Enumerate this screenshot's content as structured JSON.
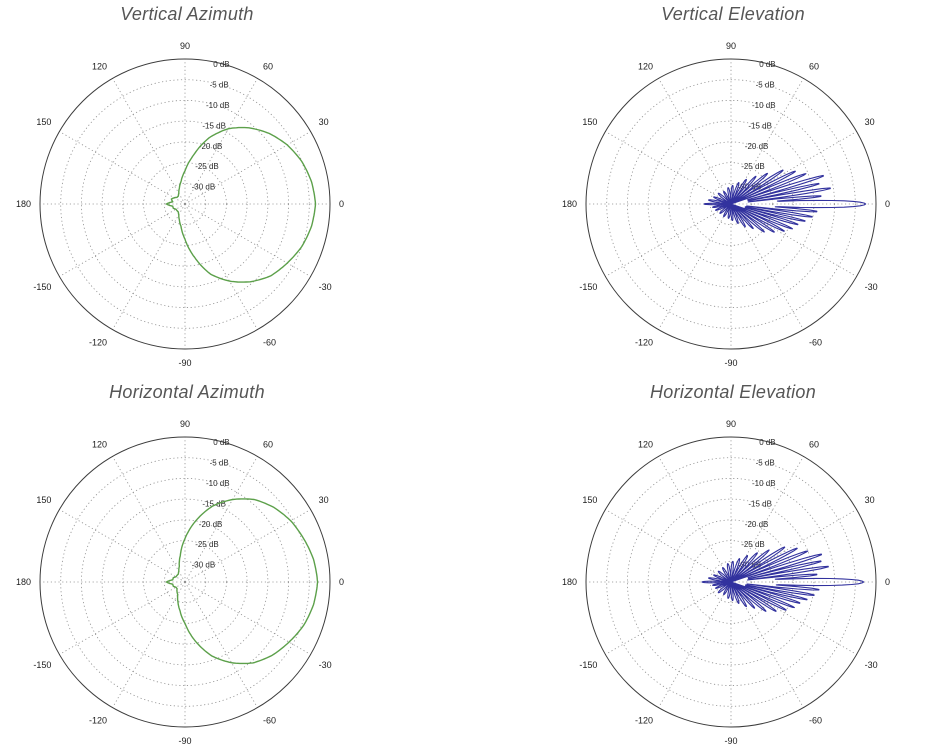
{
  "chart_data": [
    {
      "type": "line",
      "projection": "polar",
      "title": "Vertical Azimuth",
      "units": "dB",
      "r_range": [
        -35,
        0
      ],
      "grid": "dotted",
      "legend": "none",
      "angle_ticks": [
        {
          "angle": 90,
          "label": "90"
        },
        {
          "angle": 60,
          "label": "60"
        },
        {
          "angle": 30,
          "label": "30"
        },
        {
          "angle": 0,
          "label": "0"
        },
        {
          "angle": -30,
          "label": "-30"
        },
        {
          "angle": -60,
          "label": "-60"
        },
        {
          "angle": -90,
          "label": "-90"
        },
        {
          "angle": -120,
          "label": "-120"
        },
        {
          "angle": -150,
          "label": "-150"
        },
        {
          "angle": 180,
          "label": "180"
        },
        {
          "angle": 150,
          "label": "150"
        },
        {
          "angle": 120,
          "label": "120"
        }
      ],
      "radial_ticks": [
        {
          "db": 0,
          "label": "0 dB"
        },
        {
          "db": -5,
          "label": "-5 dB"
        },
        {
          "db": -10,
          "label": "-10 dB"
        },
        {
          "db": -15,
          "label": "-15 dB"
        },
        {
          "db": -20,
          "label": "-20 dB"
        },
        {
          "db": -25,
          "label": "-25 dB"
        },
        {
          "db": -30,
          "label": "-30 dB"
        }
      ],
      "series": [
        {
          "name": "gain",
          "color": "#5ca04a",
          "width": 1.4,
          "mode": "points",
          "points": [
            [
              0,
              -3.5
            ],
            [
              10,
              -4
            ],
            [
              20,
              -5
            ],
            [
              30,
              -6.5
            ],
            [
              40,
              -8.5
            ],
            [
              50,
              -11
            ],
            [
              60,
              -14
            ],
            [
              70,
              -18
            ],
            [
              80,
              -23
            ],
            [
              90,
              -27
            ],
            [
              100,
              -29.5
            ],
            [
              110,
              -31
            ],
            [
              120,
              -32
            ],
            [
              130,
              -32.5
            ],
            [
              140,
              -32.5
            ],
            [
              150,
              -32
            ],
            [
              160,
              -31.5
            ],
            [
              170,
              -32
            ],
            [
              180,
              -30.5
            ],
            [
              190,
              -32
            ],
            [
              200,
              -32
            ],
            [
              210,
              -32.5
            ],
            [
              220,
              -32.5
            ],
            [
              230,
              -32.5
            ],
            [
              240,
              -32
            ],
            [
              250,
              -31
            ],
            [
              260,
              -29.5
            ],
            [
              270,
              -26.5
            ],
            [
              280,
              -22
            ],
            [
              290,
              -17
            ],
            [
              300,
              -13.5
            ],
            [
              310,
              -10.5
            ],
            [
              320,
              -8
            ],
            [
              330,
              -6.5
            ],
            [
              340,
              -5
            ],
            [
              350,
              -4
            ]
          ]
        }
      ]
    },
    {
      "type": "line",
      "projection": "polar",
      "title": "Vertical Elevation",
      "units": "dB",
      "r_range": [
        -35,
        0
      ],
      "grid": "dotted",
      "legend": "none",
      "angle_ticks": [
        {
          "angle": 90,
          "label": "90"
        },
        {
          "angle": 60,
          "label": "60"
        },
        {
          "angle": 30,
          "label": "30"
        },
        {
          "angle": 0,
          "label": "0"
        },
        {
          "angle": -30,
          "label": "-30"
        },
        {
          "angle": -60,
          "label": "-60"
        },
        {
          "angle": -90,
          "label": "-90"
        },
        {
          "angle": -120,
          "label": "-120"
        },
        {
          "angle": -150,
          "label": "-150"
        },
        {
          "angle": 180,
          "label": "180"
        },
        {
          "angle": 150,
          "label": "150"
        },
        {
          "angle": 120,
          "label": "120"
        }
      ],
      "radial_ticks": [
        {
          "db": 0,
          "label": "0 dB"
        },
        {
          "db": -5,
          "label": "-5 dB"
        },
        {
          "db": -10,
          "label": "-10 dB"
        },
        {
          "db": -15,
          "label": "-15 dB"
        },
        {
          "db": -20,
          "label": "-20 dB"
        },
        {
          "db": -25,
          "label": "-25 dB"
        },
        {
          "db": -30,
          "label": "-30 dB"
        }
      ],
      "series": [
        {
          "name": "gain",
          "color": "#32329e",
          "width": 1.1,
          "mode": "lobes",
          "lobes": [
            [
              0,
              -2.5,
              4
            ],
            [
              5,
              -13,
              2
            ],
            [
              -5,
              -14,
              2
            ],
            [
              9,
              -10.5,
              2
            ],
            [
              -9,
              -15,
              2
            ],
            [
              13,
              -13,
              2
            ],
            [
              -13,
              -16.5,
              2
            ],
            [
              17,
              -11.5,
              2.2
            ],
            [
              -17,
              -18,
              2.2
            ],
            [
              22,
              -15.5,
              2.4
            ],
            [
              -22,
              -19,
              2.4
            ],
            [
              27,
              -17.5,
              2.6
            ],
            [
              -27,
              -20.5,
              2.6
            ],
            [
              33,
              -20,
              3
            ],
            [
              -33,
              -22.5,
              3
            ],
            [
              40,
              -23.5,
              3.5
            ],
            [
              -40,
              -24.5,
              3.5
            ],
            [
              48,
              -26,
              4
            ],
            [
              -48,
              -27,
              4
            ],
            [
              58,
              -28,
              5
            ],
            [
              -58,
              -28.5,
              5
            ],
            [
              70,
              -29.5,
              6
            ],
            [
              -70,
              -30,
              6
            ],
            [
              85,
              -30.5,
              7
            ],
            [
              -85,
              -31,
              7
            ],
            [
              100,
              -31,
              8
            ],
            [
              -100,
              -31.5,
              8
            ],
            [
              120,
              -31.5,
              8
            ],
            [
              -120,
              -31.5,
              8
            ],
            [
              140,
              -31,
              8
            ],
            [
              -140,
              -31.5,
              8
            ],
            [
              158,
              -30.5,
              6
            ],
            [
              -158,
              -31,
              6
            ],
            [
              170,
              -29.5,
              5
            ],
            [
              -170,
              -30.5,
              5
            ],
            [
              180,
              -28.5,
              4
            ]
          ]
        }
      ]
    },
    {
      "type": "line",
      "projection": "polar",
      "title": "Horizontal Azimuth",
      "units": "dB",
      "r_range": [
        -35,
        0
      ],
      "grid": "dotted",
      "legend": "none",
      "angle_ticks": [
        {
          "angle": 90,
          "label": "90"
        },
        {
          "angle": 60,
          "label": "60"
        },
        {
          "angle": 30,
          "label": "30"
        },
        {
          "angle": 0,
          "label": "0"
        },
        {
          "angle": -30,
          "label": "-30"
        },
        {
          "angle": -60,
          "label": "-60"
        },
        {
          "angle": -90,
          "label": "-90"
        },
        {
          "angle": -120,
          "label": "-120"
        },
        {
          "angle": -150,
          "label": "-150"
        },
        {
          "angle": 180,
          "label": "180"
        },
        {
          "angle": 150,
          "label": "150"
        },
        {
          "angle": 120,
          "label": "120"
        }
      ],
      "radial_ticks": [
        {
          "db": 0,
          "label": "0 dB"
        },
        {
          "db": -5,
          "label": "-5 dB"
        },
        {
          "db": -10,
          "label": "-10 dB"
        },
        {
          "db": -15,
          "label": "-15 dB"
        },
        {
          "db": -20,
          "label": "-20 dB"
        },
        {
          "db": -25,
          "label": "-25 dB"
        },
        {
          "db": -30,
          "label": "-30 dB"
        }
      ],
      "series": [
        {
          "name": "gain",
          "color": "#5ca04a",
          "width": 1.4,
          "mode": "points",
          "points": [
            [
              0,
              -3
            ],
            [
              10,
              -3.5
            ],
            [
              20,
              -4.5
            ],
            [
              30,
              -5.5
            ],
            [
              40,
              -7
            ],
            [
              50,
              -9
            ],
            [
              60,
              -12
            ],
            [
              70,
              -15.5
            ],
            [
              80,
              -20
            ],
            [
              90,
              -24.5
            ],
            [
              100,
              -28.5
            ],
            [
              110,
              -31
            ],
            [
              120,
              -32
            ],
            [
              130,
              -32.5
            ],
            [
              140,
              -32.5
            ],
            [
              150,
              -32.5
            ],
            [
              160,
              -32
            ],
            [
              170,
              -32
            ],
            [
              180,
              -30.5
            ],
            [
              190,
              -32
            ],
            [
              200,
              -32
            ],
            [
              210,
              -32.5
            ],
            [
              220,
              -32.5
            ],
            [
              230,
              -32
            ],
            [
              240,
              -31.5
            ],
            [
              250,
              -30
            ],
            [
              260,
              -28
            ],
            [
              270,
              -25
            ],
            [
              280,
              -20.5
            ],
            [
              290,
              -16
            ],
            [
              300,
              -12.5
            ],
            [
              310,
              -9.5
            ],
            [
              320,
              -7.5
            ],
            [
              330,
              -6
            ],
            [
              340,
              -4.5
            ],
            [
              350,
              -3.5
            ]
          ]
        }
      ]
    },
    {
      "type": "line",
      "projection": "polar",
      "title": "Horizontal Elevation",
      "units": "dB",
      "r_range": [
        -35,
        0
      ],
      "grid": "dotted",
      "legend": "none",
      "angle_ticks": [
        {
          "angle": 90,
          "label": "90"
        },
        {
          "angle": 60,
          "label": "60"
        },
        {
          "angle": 30,
          "label": "30"
        },
        {
          "angle": 0,
          "label": "0"
        },
        {
          "angle": -30,
          "label": "-30"
        },
        {
          "angle": -60,
          "label": "-60"
        },
        {
          "angle": -90,
          "label": "-90"
        },
        {
          "angle": -120,
          "label": "-120"
        },
        {
          "angle": -150,
          "label": "-150"
        },
        {
          "angle": 180,
          "label": "180"
        },
        {
          "angle": 150,
          "label": "150"
        },
        {
          "angle": 120,
          "label": "120"
        }
      ],
      "radial_ticks": [
        {
          "db": 0,
          "label": "0 dB"
        },
        {
          "db": -5,
          "label": "-5 dB"
        },
        {
          "db": -10,
          "label": "-10 dB"
        },
        {
          "db": -15,
          "label": "-15 dB"
        },
        {
          "db": -20,
          "label": "-20 dB"
        },
        {
          "db": -25,
          "label": "-25 dB"
        },
        {
          "db": -30,
          "label": "-30 dB"
        }
      ],
      "series": [
        {
          "name": "gain",
          "color": "#32329e",
          "width": 1.1,
          "mode": "lobes",
          "lobes": [
            [
              0,
              -3,
              4
            ],
            [
              5,
              -14,
              2
            ],
            [
              -5,
              -13.5,
              2
            ],
            [
              9,
              -11,
              2
            ],
            [
              -9,
              -14.5,
              2
            ],
            [
              13,
              -12.5,
              2
            ],
            [
              -13,
              -16,
              2
            ],
            [
              17,
              -12,
              2.2
            ],
            [
              -17,
              -17.5,
              2.2
            ],
            [
              22,
              -15,
              2.4
            ],
            [
              -22,
              -18.5,
              2.4
            ],
            [
              27,
              -17,
              2.6
            ],
            [
              -27,
              -20,
              2.6
            ],
            [
              33,
              -19.5,
              3
            ],
            [
              -33,
              -22,
              3
            ],
            [
              40,
              -23,
              3.5
            ],
            [
              -40,
              -24,
              3.5
            ],
            [
              48,
              -25.5,
              4
            ],
            [
              -48,
              -26.5,
              4
            ],
            [
              58,
              -27.5,
              5
            ],
            [
              -58,
              -28,
              5
            ],
            [
              70,
              -29,
              6
            ],
            [
              -70,
              -29.5,
              6
            ],
            [
              85,
              -30,
              7
            ],
            [
              -85,
              -30.5,
              7
            ],
            [
              100,
              -30.5,
              8
            ],
            [
              -100,
              -31,
              8
            ],
            [
              120,
              -31,
              8
            ],
            [
              -120,
              -31.5,
              8
            ],
            [
              140,
              -31,
              8
            ],
            [
              -140,
              -31,
              8
            ],
            [
              158,
              -30.5,
              6
            ],
            [
              -158,
              -31,
              6
            ],
            [
              170,
              -29.5,
              5
            ],
            [
              -170,
              -30.5,
              5
            ],
            [
              180,
              -28,
              4
            ]
          ]
        }
      ]
    }
  ]
}
